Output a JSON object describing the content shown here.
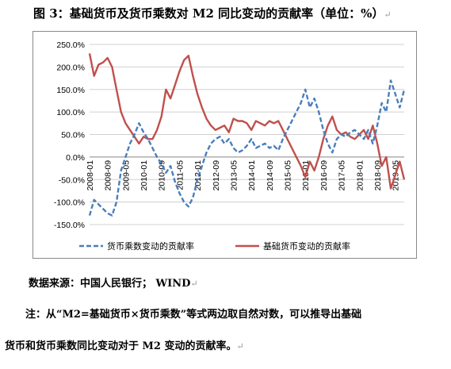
{
  "title": "图 3：基础货币及货币乘数对 M2 同比变动的贡献率（单位：%）",
  "paragraph_mark": "↵",
  "source": "数据来源：中国人民银行； WIND",
  "note_line1": "注：从“M2=基础货币×货币乘数”等式两边取自然对数，可以推导出基础",
  "note_line2": "货币和货币乘数同比变动对于 M2 变动的贡献率。",
  "chart_data": {
    "type": "line",
    "title": "",
    "xlabel": "",
    "ylabel": "",
    "ylim": [
      -150,
      250
    ],
    "y_tick_step": 50,
    "y_ticks": [
      "250.0%",
      "200.0%",
      "150.0%",
      "100.0%",
      "50.0%",
      "0.0%",
      "-50.0%",
      "-100.0%",
      "-150.0%"
    ],
    "x_tick_labels": [
      "2008-01",
      "2008-09",
      "2009-05",
      "2010-01",
      "2010-09",
      "2011-05",
      "2012-01",
      "2012-09",
      "2013-05",
      "2014-01",
      "2014-09",
      "2015-05",
      "2016-01",
      "2016-09",
      "2017-05",
      "2018-01",
      "2018-09",
      "2019-05"
    ],
    "x_start": "2008-01",
    "x_end": "2019-09",
    "grid": true,
    "legend": "bottom",
    "series": [
      {
        "name": "货币乘数变动的贡献率",
        "color": "#4a7ebb",
        "style": "dashed",
        "points": [
          [
            "2008-01",
            -130
          ],
          [
            "2008-03",
            -95
          ],
          [
            "2008-05",
            -105
          ],
          [
            "2008-07",
            -115
          ],
          [
            "2008-09",
            -125
          ],
          [
            "2008-11",
            -130
          ],
          [
            "2009-01",
            -100
          ],
          [
            "2009-03",
            -30
          ],
          [
            "2009-05",
            0
          ],
          [
            "2009-07",
            30
          ],
          [
            "2009-09",
            50
          ],
          [
            "2009-11",
            75
          ],
          [
            "2010-01",
            55
          ],
          [
            "2010-03",
            40
          ],
          [
            "2010-05",
            20
          ],
          [
            "2010-07",
            0
          ],
          [
            "2010-09",
            -15
          ],
          [
            "2010-11",
            -35
          ],
          [
            "2011-01",
            -20
          ],
          [
            "2011-03",
            -55
          ],
          [
            "2011-05",
            -80
          ],
          [
            "2011-07",
            -100
          ],
          [
            "2011-09",
            -110
          ],
          [
            "2011-11",
            -90
          ],
          [
            "2012-01",
            -50
          ],
          [
            "2012-03",
            -20
          ],
          [
            "2012-05",
            10
          ],
          [
            "2012-07",
            30
          ],
          [
            "2012-09",
            40
          ],
          [
            "2012-11",
            45
          ],
          [
            "2013-01",
            30
          ],
          [
            "2013-03",
            40
          ],
          [
            "2013-05",
            20
          ],
          [
            "2013-07",
            10
          ],
          [
            "2013-09",
            15
          ],
          [
            "2013-11",
            25
          ],
          [
            "2014-01",
            40
          ],
          [
            "2014-03",
            20
          ],
          [
            "2014-05",
            25
          ],
          [
            "2014-07",
            30
          ],
          [
            "2014-09",
            20
          ],
          [
            "2014-11",
            25
          ],
          [
            "2015-01",
            15
          ],
          [
            "2015-03",
            40
          ],
          [
            "2015-05",
            60
          ],
          [
            "2015-07",
            80
          ],
          [
            "2015-09",
            100
          ],
          [
            "2015-11",
            120
          ],
          [
            "2016-01",
            150
          ],
          [
            "2016-03",
            110
          ],
          [
            "2016-05",
            130
          ],
          [
            "2016-07",
            100
          ],
          [
            "2016-09",
            60
          ],
          [
            "2016-11",
            30
          ],
          [
            "2017-01",
            10
          ],
          [
            "2017-03",
            40
          ],
          [
            "2017-05",
            50
          ],
          [
            "2017-07",
            45
          ],
          [
            "2017-09",
            55
          ],
          [
            "2017-11",
            60
          ],
          [
            "2018-01",
            50
          ],
          [
            "2018-03",
            40
          ],
          [
            "2018-05",
            60
          ],
          [
            "2018-07",
            30
          ],
          [
            "2018-09",
            70
          ],
          [
            "2018-11",
            120
          ],
          [
            "2019-01",
            100
          ],
          [
            "2019-03",
            170
          ],
          [
            "2019-05",
            140
          ],
          [
            "2019-07",
            110
          ],
          [
            "2019-09",
            150
          ]
        ]
      },
      {
        "name": "基础货币变动的贡献率",
        "color": "#c0504d",
        "style": "solid",
        "points": [
          [
            "2008-01",
            230
          ],
          [
            "2008-03",
            180
          ],
          [
            "2008-05",
            205
          ],
          [
            "2008-07",
            210
          ],
          [
            "2008-09",
            220
          ],
          [
            "2008-11",
            200
          ],
          [
            "2009-01",
            150
          ],
          [
            "2009-03",
            100
          ],
          [
            "2009-05",
            75
          ],
          [
            "2009-07",
            60
          ],
          [
            "2009-09",
            45
          ],
          [
            "2009-11",
            30
          ],
          [
            "2010-01",
            45
          ],
          [
            "2010-03",
            40
          ],
          [
            "2010-05",
            40
          ],
          [
            "2010-07",
            60
          ],
          [
            "2010-09",
            90
          ],
          [
            "2010-11",
            150
          ],
          [
            "2011-01",
            130
          ],
          [
            "2011-03",
            160
          ],
          [
            "2011-05",
            190
          ],
          [
            "2011-07",
            215
          ],
          [
            "2011-09",
            225
          ],
          [
            "2011-11",
            180
          ],
          [
            "2012-01",
            140
          ],
          [
            "2012-03",
            110
          ],
          [
            "2012-05",
            85
          ],
          [
            "2012-07",
            70
          ],
          [
            "2012-09",
            60
          ],
          [
            "2012-11",
            65
          ],
          [
            "2013-01",
            70
          ],
          [
            "2013-03",
            55
          ],
          [
            "2013-05",
            85
          ],
          [
            "2013-07",
            80
          ],
          [
            "2013-09",
            80
          ],
          [
            "2013-11",
            75
          ],
          [
            "2014-01",
            60
          ],
          [
            "2014-03",
            80
          ],
          [
            "2014-05",
            75
          ],
          [
            "2014-07",
            70
          ],
          [
            "2014-09",
            80
          ],
          [
            "2014-11",
            75
          ],
          [
            "2015-01",
            80
          ],
          [
            "2015-03",
            60
          ],
          [
            "2015-05",
            40
          ],
          [
            "2015-07",
            20
          ],
          [
            "2015-09",
            0
          ],
          [
            "2015-11",
            -20
          ],
          [
            "2016-01",
            -45
          ],
          [
            "2016-03",
            -10
          ],
          [
            "2016-05",
            -30
          ],
          [
            "2016-07",
            0
          ],
          [
            "2016-09",
            40
          ],
          [
            "2016-11",
            70
          ],
          [
            "2017-01",
            90
          ],
          [
            "2017-03",
            60
          ],
          [
            "2017-05",
            50
          ],
          [
            "2017-07",
            55
          ],
          [
            "2017-09",
            45
          ],
          [
            "2017-11",
            40
          ],
          [
            "2018-01",
            50
          ],
          [
            "2018-03",
            60
          ],
          [
            "2018-05",
            40
          ],
          [
            "2018-07",
            70
          ],
          [
            "2018-09",
            30
          ],
          [
            "2018-11",
            -20
          ],
          [
            "2019-01",
            0
          ],
          [
            "2019-03",
            -70
          ],
          [
            "2019-05",
            -40
          ],
          [
            "2019-07",
            -10
          ],
          [
            "2019-09",
            -50
          ]
        ]
      }
    ]
  }
}
